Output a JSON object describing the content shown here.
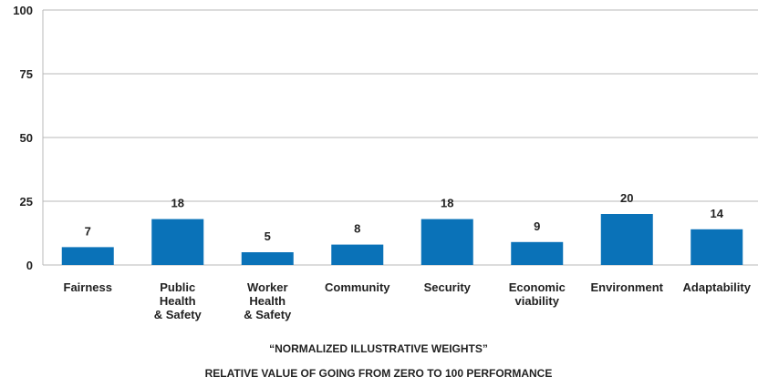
{
  "chart_data": {
    "type": "bar",
    "categories": [
      [
        "Fairness"
      ],
      [
        "Public",
        "Health",
        "& Safety"
      ],
      [
        "Worker",
        "Health",
        "& Safety"
      ],
      [
        "Community"
      ],
      [
        "Security"
      ],
      [
        "Economic",
        "viability"
      ],
      [
        "Environment"
      ],
      [
        "Adaptability"
      ]
    ],
    "values": [
      7,
      18,
      5,
      8,
      18,
      9,
      20,
      14
    ],
    "ylim": [
      0,
      100
    ],
    "yticks": [
      0,
      25,
      50,
      75,
      100
    ],
    "grid": true,
    "bar_color": "#0a72b8",
    "grid_color": "#b8b8b8",
    "caption_lines": [
      "“NORMALIZED ILLUSTRATIVE WEIGHTS”",
      "RELATIVE VALUE OF GOING FROM ZERO TO 100 PERFORMANCE"
    ]
  }
}
